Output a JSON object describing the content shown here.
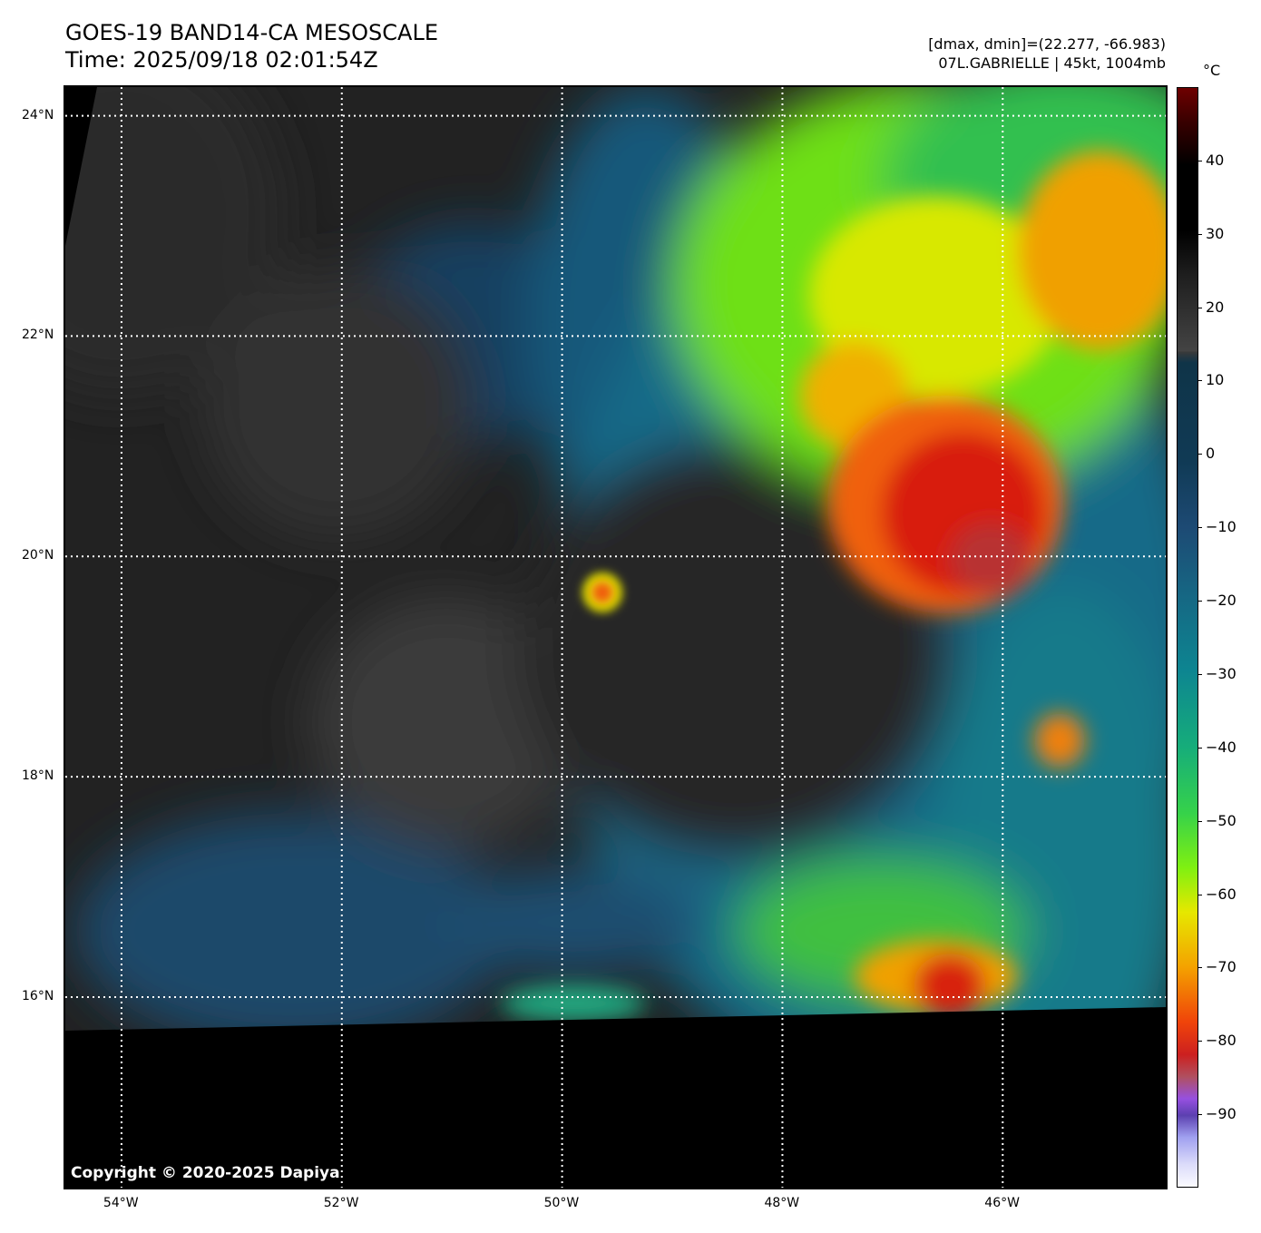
{
  "header": {
    "title": "GOES-19 BAND14-CA MESOSCALE",
    "time": "Time: 2025/09/18 02:01:54Z",
    "dminmax": "[dmax, dmin]=(22.277, -66.983)",
    "storm": "07L.GABRIELLE | 45kt, 1004mb"
  },
  "map": {
    "lon_range": [
      -54.51,
      -44.52
    ],
    "lat_range": [
      14.27,
      24.26
    ],
    "lon_ticks": [
      {
        "value": -54,
        "label": "54°W"
      },
      {
        "value": -52,
        "label": "52°W"
      },
      {
        "value": -50,
        "label": "50°W"
      },
      {
        "value": -48,
        "label": "48°W"
      },
      {
        "value": -46,
        "label": "46°W"
      }
    ],
    "lat_ticks": [
      {
        "value": 24,
        "label": "24°N"
      },
      {
        "value": 22,
        "label": "22°N"
      },
      {
        "value": 20,
        "label": "20°N"
      },
      {
        "value": 18,
        "label": "18°N"
      },
      {
        "value": 16,
        "label": "16°N"
      }
    ],
    "copyright": "Copyright © 2020-2025 Dapiya"
  },
  "colorbar": {
    "unit": "°C",
    "range": [
      -100,
      50
    ],
    "ticks": [
      {
        "value": 40,
        "label": "40"
      },
      {
        "value": 30,
        "label": "30"
      },
      {
        "value": 20,
        "label": "20"
      },
      {
        "value": 10,
        "label": "10"
      },
      {
        "value": 0,
        "label": "0"
      },
      {
        "value": -10,
        "label": "−10"
      },
      {
        "value": -20,
        "label": "−20"
      },
      {
        "value": -30,
        "label": "−30"
      },
      {
        "value": -40,
        "label": "−40"
      },
      {
        "value": -50,
        "label": "−50"
      },
      {
        "value": -60,
        "label": "−60"
      },
      {
        "value": -70,
        "label": "−70"
      },
      {
        "value": -80,
        "label": "−80"
      },
      {
        "value": -90,
        "label": "−90"
      }
    ]
  }
}
